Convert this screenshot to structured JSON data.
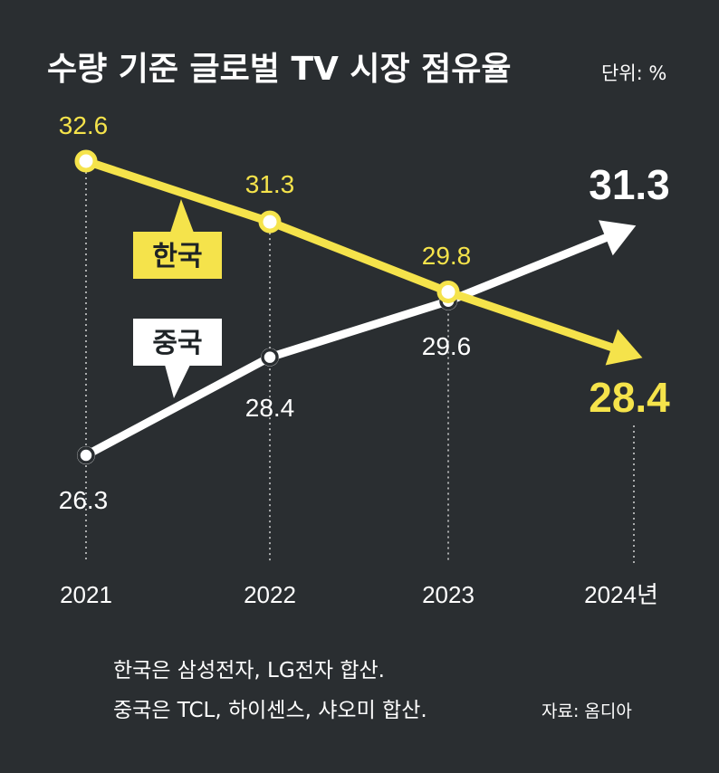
{
  "colors": {
    "background": "#2a2e31",
    "korea": "#f5e34b",
    "china": "#ffffff",
    "badge_text": "#1e2326"
  },
  "title": "수량 기준 글로벌 TV 시장 점유율",
  "unit": "단위: %",
  "notes": {
    "line1": "한국은 삼성전자, LG전자 합산.",
    "line2": "중국은 TCL, 하이센스, 샤오미 합산.",
    "source": "자료: 옴디아"
  },
  "chart_data": {
    "type": "line",
    "categories": [
      "2021",
      "2022",
      "2023",
      "2024년"
    ],
    "ylim": [
      25,
      34
    ],
    "grid": false,
    "series": [
      {
        "name": "한국",
        "values": [
          32.6,
          31.3,
          29.8,
          28.4
        ],
        "labels": [
          "32.6",
          "31.3",
          "29.8",
          "28.4"
        ]
      },
      {
        "name": "중국",
        "values": [
          26.3,
          28.4,
          29.6,
          31.3
        ],
        "labels": [
          "26.3",
          "28.4",
          "29.6",
          "31.3"
        ]
      }
    ]
  }
}
